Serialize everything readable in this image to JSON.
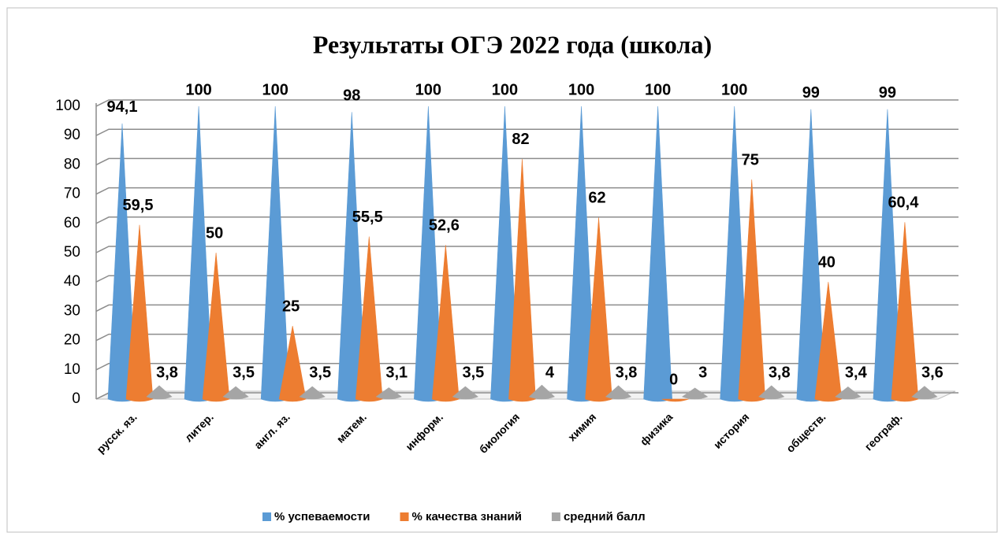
{
  "chart_data": {
    "type": "cone3d",
    "title": "Результаты ОГЭ 2022 года (школа)",
    "categories": [
      "русск. яз.",
      "литер.",
      "англ. яз.",
      "матем.",
      "информ.",
      "биология",
      "химия",
      "физика",
      "история",
      "обществ.",
      "географ."
    ],
    "series": [
      {
        "name": "% успеваемости",
        "color": "#5b9bd5",
        "values": [
          94.1,
          100,
          100,
          98,
          100,
          100,
          100,
          100,
          100,
          99,
          99
        ],
        "value_labels": [
          "94,1",
          "100",
          "100",
          "98",
          "100",
          "100",
          "100",
          "100",
          "100",
          "99",
          "99"
        ]
      },
      {
        "name": "% качества знаний",
        "color": "#ed7d31",
        "values": [
          59.5,
          50,
          25,
          55.5,
          52.6,
          82,
          62,
          0,
          75,
          40,
          60.4
        ],
        "value_labels": [
          "59,5",
          "50",
          "25",
          "55,5",
          "52,6",
          "82",
          "62",
          "0",
          "75",
          "40",
          "60,4"
        ]
      },
      {
        "name": "средний балл",
        "color": "#a5a5a5",
        "values": [
          3.8,
          3.5,
          3.5,
          3.1,
          3.5,
          4,
          3.8,
          3,
          3.8,
          3.4,
          3.6
        ],
        "value_labels": [
          "3,8",
          "3,5",
          "3,5",
          "3,1",
          "3,5",
          "4",
          "3,8",
          "3",
          "3,8",
          "3,4",
          "3,6"
        ]
      }
    ],
    "ylim": [
      0,
      100
    ],
    "yticks": [
      0,
      10,
      20,
      30,
      40,
      50,
      60,
      70,
      80,
      90,
      100
    ],
    "grid": true,
    "legend": "bottom"
  }
}
